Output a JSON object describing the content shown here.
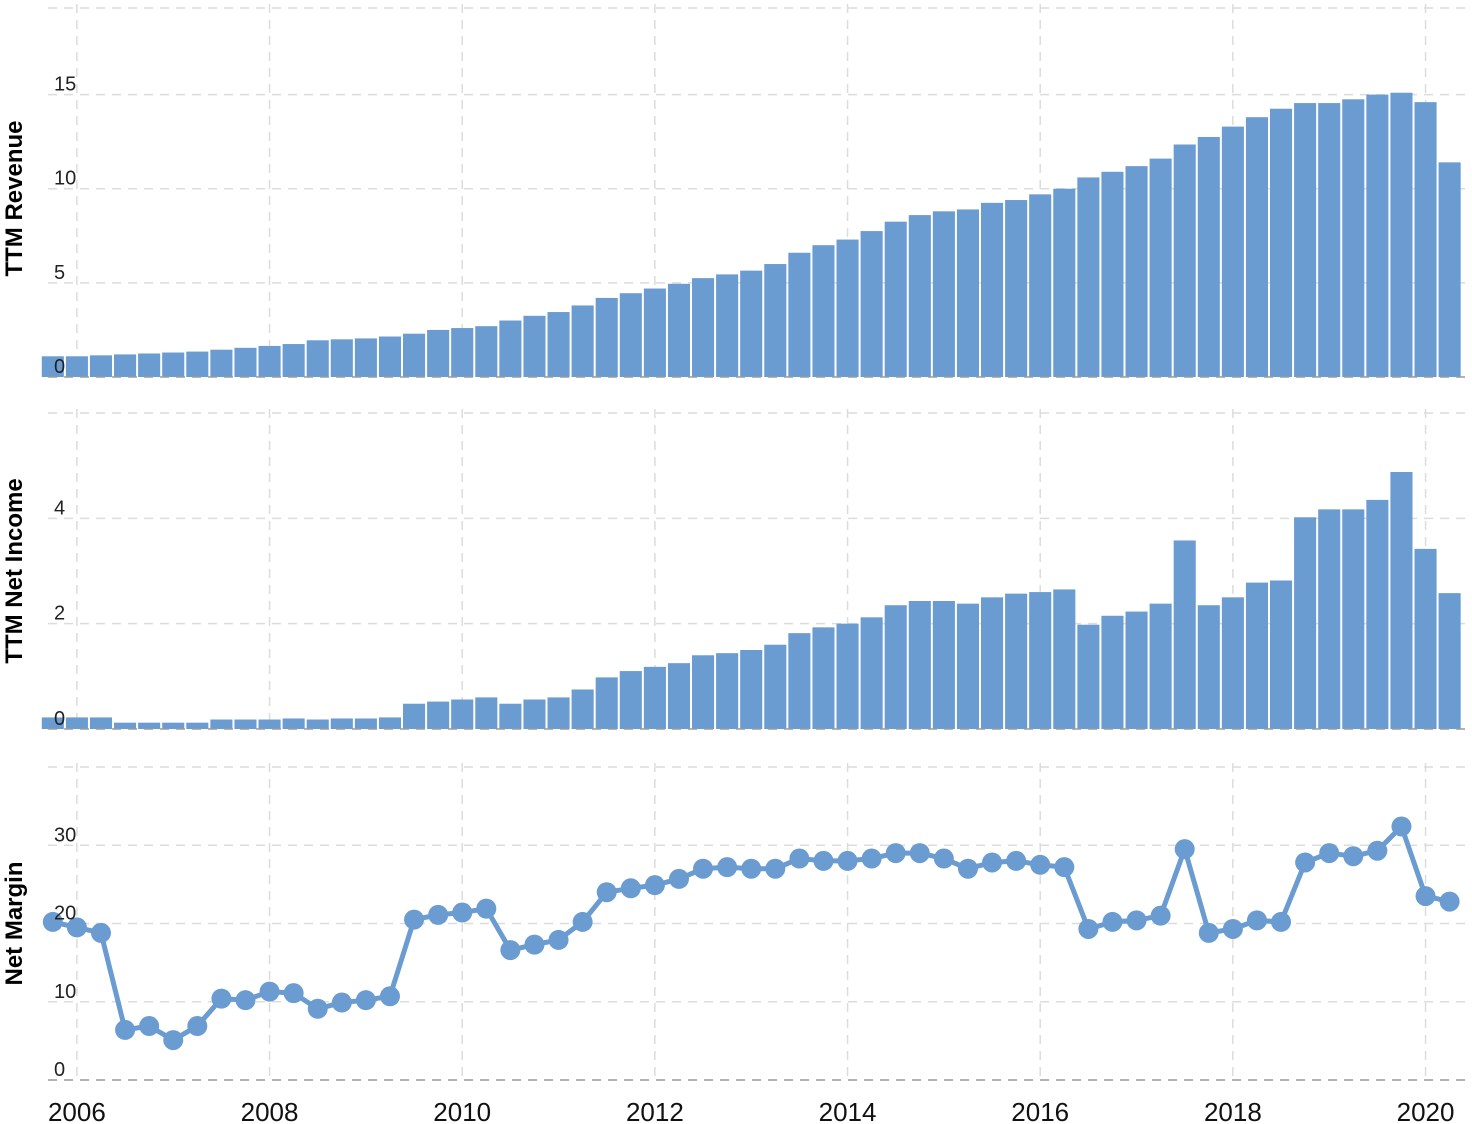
{
  "chart_data": [
    {
      "type": "bar",
      "ylabel": "TTM Revenue",
      "xlabel": "",
      "title": "",
      "ylim": [
        0,
        19.6
      ],
      "yticks": [
        0,
        5,
        10,
        15
      ],
      "xlim": [
        2005.7,
        2020.42
      ],
      "xticks": [
        "2006",
        "2008",
        "2010",
        "2012",
        "2014",
        "2016",
        "2018",
        "2020"
      ],
      "color": "#6a9bd1",
      "x": [
        2005.75,
        2006.0,
        2006.25,
        2006.5,
        2006.75,
        2007.0,
        2007.25,
        2007.5,
        2007.75,
        2008.0,
        2008.25,
        2008.5,
        2008.75,
        2009.0,
        2009.25,
        2009.5,
        2009.75,
        2010.0,
        2010.25,
        2010.5,
        2010.75,
        2011.0,
        2011.25,
        2011.5,
        2011.75,
        2012.0,
        2012.25,
        2012.5,
        2012.75,
        2013.0,
        2013.25,
        2013.5,
        2013.75,
        2014.0,
        2014.25,
        2014.5,
        2014.75,
        2015.0,
        2015.25,
        2015.5,
        2015.75,
        2016.0,
        2016.25,
        2016.5,
        2016.75,
        2017.0,
        2017.25,
        2017.5,
        2017.75,
        2018.0,
        2018.25,
        2018.5,
        2018.75,
        2019.0,
        2019.25,
        2019.5,
        2019.75,
        2020.0,
        2020.25
      ],
      "values": [
        1.1,
        1.1,
        1.15,
        1.2,
        1.25,
        1.3,
        1.35,
        1.45,
        1.55,
        1.65,
        1.75,
        1.95,
        2.0,
        2.05,
        2.15,
        2.3,
        2.5,
        2.6,
        2.7,
        3.0,
        3.25,
        3.45,
        3.8,
        4.2,
        4.45,
        4.7,
        4.95,
        5.25,
        5.45,
        5.65,
        6.0,
        6.6,
        7.0,
        7.3,
        7.75,
        8.25,
        8.6,
        8.8,
        8.9,
        9.25,
        9.4,
        9.7,
        10.0,
        10.6,
        10.9,
        11.2,
        11.6,
        12.35,
        12.75,
        13.3,
        13.8,
        14.25,
        14.55,
        14.55,
        14.75,
        15.0,
        15.1,
        14.6,
        11.4
      ]
    },
    {
      "type": "bar",
      "ylabel": "TTM Net Income",
      "xlabel": "",
      "title": "",
      "ylim": [
        0,
        6.0
      ],
      "yticks": [
        0,
        2,
        4
      ],
      "xlim": [
        2005.7,
        2020.42
      ],
      "color": "#6a9bd1",
      "x": [
        2005.75,
        2006.0,
        2006.25,
        2006.5,
        2006.75,
        2007.0,
        2007.25,
        2007.5,
        2007.75,
        2008.0,
        2008.25,
        2008.5,
        2008.75,
        2009.0,
        2009.25,
        2009.5,
        2009.75,
        2010.0,
        2010.25,
        2010.5,
        2010.75,
        2011.0,
        2011.25,
        2011.5,
        2011.75,
        2012.0,
        2012.25,
        2012.5,
        2012.75,
        2013.0,
        2013.25,
        2013.5,
        2013.75,
        2014.0,
        2014.25,
        2014.5,
        2014.75,
        2015.0,
        2015.25,
        2015.5,
        2015.75,
        2016.0,
        2016.25,
        2016.5,
        2016.75,
        2017.0,
        2017.25,
        2017.5,
        2017.75,
        2018.0,
        2018.25,
        2018.5,
        2018.75,
        2019.0,
        2019.25,
        2019.5,
        2019.75,
        2020.0,
        2020.25
      ],
      "values": [
        0.22,
        0.22,
        0.22,
        0.12,
        0.12,
        0.12,
        0.12,
        0.18,
        0.18,
        0.18,
        0.2,
        0.18,
        0.2,
        0.2,
        0.22,
        0.48,
        0.52,
        0.56,
        0.6,
        0.48,
        0.56,
        0.6,
        0.75,
        0.98,
        1.1,
        1.18,
        1.25,
        1.4,
        1.44,
        1.5,
        1.6,
        1.82,
        1.93,
        2.0,
        2.12,
        2.35,
        2.43,
        2.43,
        2.38,
        2.5,
        2.57,
        2.6,
        2.65,
        1.98,
        2.15,
        2.23,
        2.38,
        3.58,
        2.35,
        2.5,
        2.78,
        2.82,
        4.02,
        4.17,
        4.17,
        4.35,
        4.88,
        3.42,
        2.58
      ]
    },
    {
      "type": "line",
      "ylabel": "Net Margin",
      "xlabel": "",
      "title": "",
      "ylim": [
        0,
        40
      ],
      "yticks": [
        0,
        10,
        20,
        30
      ],
      "xlim": [
        2005.7,
        2020.42
      ],
      "color": "#6a9bd1",
      "x": [
        2005.75,
        2006.0,
        2006.25,
        2006.5,
        2006.75,
        2007.0,
        2007.25,
        2007.5,
        2007.75,
        2008.0,
        2008.25,
        2008.5,
        2008.75,
        2009.0,
        2009.25,
        2009.5,
        2009.75,
        2010.0,
        2010.25,
        2010.5,
        2010.75,
        2011.0,
        2011.25,
        2011.5,
        2011.75,
        2012.0,
        2012.25,
        2012.5,
        2012.75,
        2013.0,
        2013.25,
        2013.5,
        2013.75,
        2014.0,
        2014.25,
        2014.5,
        2014.75,
        2015.0,
        2015.25,
        2015.5,
        2015.75,
        2016.0,
        2016.25,
        2016.5,
        2016.75,
        2017.0,
        2017.25,
        2017.5,
        2017.75,
        2018.0,
        2018.25,
        2018.5,
        2018.75,
        2019.0,
        2019.25,
        2019.5,
        2019.75,
        2020.0,
        2020.25
      ],
      "values": [
        20.2,
        19.5,
        18.8,
        6.4,
        6.9,
        5.1,
        6.9,
        10.4,
        10.2,
        11.3,
        11.1,
        9.1,
        9.9,
        10.2,
        10.7,
        20.5,
        21.1,
        21.4,
        21.9,
        16.6,
        17.3,
        17.9,
        20.2,
        24.0,
        24.5,
        24.9,
        25.7,
        27.0,
        27.2,
        27.0,
        27.0,
        28.3,
        28.0,
        28.0,
        28.3,
        29.0,
        29.0,
        28.3,
        27.0,
        27.8,
        28.0,
        27.5,
        27.2,
        19.3,
        20.2,
        20.4,
        21.0,
        29.5,
        18.8,
        19.3,
        20.4,
        20.2,
        27.8,
        29.0,
        28.6,
        29.3,
        32.4,
        23.5,
        22.8
      ]
    }
  ]
}
